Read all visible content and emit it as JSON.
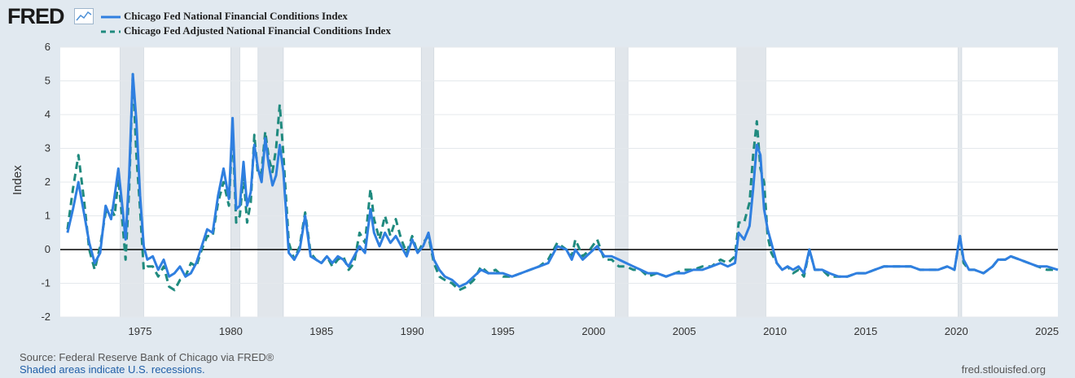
{
  "header": {
    "logo_text": "FRED",
    "logo_icon": "line-chart-icon"
  },
  "footer": {
    "source": "Source: Federal Reserve Bank of Chicago via FRED®",
    "recession_note": "Shaded areas indicate U.S. recessions.",
    "site": "fred.stlouisfed.org"
  },
  "colors": {
    "background": "#e1e9f0",
    "plot_background": "#ffffff",
    "recession_shade": "#e1e6eb",
    "nfci": "#2f7fe0",
    "anfci": "#1f8a7e",
    "zero_line": "#000000",
    "grid": "#e4e8ec"
  },
  "chart_data": {
    "type": "line",
    "title": "",
    "xlabel": "",
    "ylabel": "Index",
    "xlim": [
      1970.6,
      2025.6
    ],
    "ylim": [
      -2,
      6
    ],
    "yticks": [
      6,
      5,
      4,
      3,
      2,
      1,
      0,
      -1,
      -2
    ],
    "xticks": [
      1975,
      1980,
      1985,
      1990,
      1995,
      2000,
      2005,
      2010,
      2015,
      2020,
      2025
    ],
    "zero_line": 0,
    "legend": "top-left",
    "recessions": [
      [
        1973.9,
        1975.2
      ],
      [
        1980.0,
        1980.5
      ],
      [
        1981.5,
        1982.9
      ],
      [
        1990.5,
        1991.2
      ],
      [
        2001.2,
        2001.9
      ],
      [
        2007.9,
        2009.5
      ],
      [
        2020.1,
        2020.3
      ]
    ],
    "series": [
      {
        "name": "Chicago Fed National Financial Conditions Index",
        "style": "solid",
        "x": [
          1971.0,
          1971.3,
          1971.6,
          1971.9,
          1972.2,
          1972.5,
          1972.8,
          1973.1,
          1973.4,
          1973.6,
          1973.8,
          1974.0,
          1974.2,
          1974.4,
          1974.6,
          1974.8,
          1975.0,
          1975.2,
          1975.4,
          1975.7,
          1976.0,
          1976.3,
          1976.6,
          1976.9,
          1977.2,
          1977.5,
          1977.8,
          1978.1,
          1978.4,
          1978.7,
          1979.0,
          1979.3,
          1979.6,
          1979.9,
          1980.1,
          1980.3,
          1980.5,
          1980.7,
          1980.9,
          1981.1,
          1981.3,
          1981.5,
          1981.7,
          1981.9,
          1982.1,
          1982.3,
          1982.5,
          1982.7,
          1982.9,
          1983.2,
          1983.5,
          1983.8,
          1984.1,
          1984.4,
          1984.7,
          1985.0,
          1985.3,
          1985.6,
          1985.9,
          1986.2,
          1986.5,
          1986.8,
          1987.1,
          1987.4,
          1987.7,
          1987.9,
          1988.2,
          1988.5,
          1988.8,
          1989.1,
          1989.4,
          1989.7,
          1990.0,
          1990.3,
          1990.6,
          1990.9,
          1991.2,
          1991.5,
          1991.8,
          1992.2,
          1992.6,
          1993.0,
          1993.4,
          1993.8,
          1994.2,
          1994.6,
          1995.0,
          1995.5,
          1996.0,
          1996.5,
          1997.0,
          1997.5,
          1998.0,
          1998.5,
          1998.8,
          1999.0,
          1999.4,
          1999.8,
          2000.2,
          2000.6,
          2001.0,
          2001.4,
          2001.8,
          2002.2,
          2002.6,
          2003.0,
          2003.5,
          2004.0,
          2004.5,
          2005.0,
          2005.5,
          2006.0,
          2006.5,
          2007.0,
          2007.4,
          2007.8,
          2008.0,
          2008.3,
          2008.6,
          2008.8,
          2009.0,
          2009.2,
          2009.4,
          2009.6,
          2009.8,
          2010.1,
          2010.4,
          2010.7,
          2011.0,
          2011.3,
          2011.6,
          2011.9,
          2012.2,
          2012.6,
          2013.0,
          2013.5,
          2014.0,
          2014.5,
          2015.0,
          2015.5,
          2016.0,
          2016.5,
          2017.0,
          2017.5,
          2018.0,
          2018.5,
          2019.0,
          2019.5,
          2019.9,
          2020.2,
          2020.4,
          2020.7,
          2021.0,
          2021.5,
          2022.0,
          2022.3,
          2022.7,
          2023.0,
          2023.5,
          2024.0,
          2024.5,
          2025.0,
          2025.6
        ],
        "values": [
          0.5,
          1.2,
          2.0,
          1.1,
          0.2,
          -0.4,
          -0.1,
          1.3,
          0.9,
          1.6,
          2.4,
          1.4,
          0.3,
          2.2,
          5.2,
          3.8,
          1.6,
          0.1,
          -0.3,
          -0.2,
          -0.6,
          -0.3,
          -0.8,
          -0.7,
          -0.5,
          -0.8,
          -0.7,
          -0.4,
          0.1,
          0.6,
          0.5,
          1.6,
          2.4,
          1.5,
          3.9,
          1.2,
          1.3,
          2.6,
          1.3,
          1.7,
          3.1,
          2.4,
          2.0,
          3.3,
          2.5,
          1.9,
          2.2,
          3.1,
          2.3,
          -0.1,
          -0.3,
          0.0,
          1.0,
          -0.2,
          -0.3,
          -0.4,
          -0.2,
          -0.4,
          -0.2,
          -0.3,
          -0.5,
          -0.2,
          0.1,
          -0.1,
          1.2,
          0.5,
          0.1,
          0.5,
          0.2,
          0.4,
          0.1,
          -0.2,
          0.3,
          -0.1,
          0.1,
          0.5,
          -0.3,
          -0.6,
          -0.8,
          -0.9,
          -1.1,
          -1.0,
          -0.8,
          -0.6,
          -0.7,
          -0.7,
          -0.7,
          -0.8,
          -0.7,
          -0.6,
          -0.5,
          -0.4,
          0.1,
          0.0,
          -0.3,
          0.0,
          -0.3,
          -0.1,
          0.1,
          -0.2,
          -0.2,
          -0.3,
          -0.4,
          -0.5,
          -0.6,
          -0.7,
          -0.7,
          -0.8,
          -0.7,
          -0.7,
          -0.6,
          -0.6,
          -0.5,
          -0.4,
          -0.5,
          -0.4,
          0.5,
          0.3,
          0.7,
          1.8,
          3.1,
          2.8,
          1.2,
          0.6,
          0.2,
          -0.4,
          -0.6,
          -0.5,
          -0.6,
          -0.5,
          -0.7,
          0.0,
          -0.6,
          -0.6,
          -0.7,
          -0.8,
          -0.8,
          -0.7,
          -0.7,
          -0.6,
          -0.5,
          -0.5,
          -0.5,
          -0.5,
          -0.6,
          -0.6,
          -0.6,
          -0.5,
          -0.6,
          0.4,
          -0.3,
          -0.6,
          -0.6,
          -0.7,
          -0.5,
          -0.3,
          -0.3,
          -0.2,
          -0.3,
          -0.4,
          -0.5,
          -0.5,
          -0.6
        ]
      },
      {
        "name": "Chicago Fed Adjusted National Financial Conditions Index",
        "style": "dashed",
        "x": [
          1971.0,
          1971.3,
          1971.6,
          1971.9,
          1972.2,
          1972.5,
          1972.8,
          1973.1,
          1973.4,
          1973.6,
          1973.8,
          1974.0,
          1974.2,
          1974.4,
          1974.6,
          1974.8,
          1975.0,
          1975.2,
          1975.4,
          1975.7,
          1976.0,
          1976.3,
          1976.6,
          1976.9,
          1977.2,
          1977.5,
          1977.8,
          1978.1,
          1978.4,
          1978.7,
          1979.0,
          1979.3,
          1979.6,
          1979.9,
          1980.1,
          1980.3,
          1980.5,
          1980.7,
          1980.9,
          1981.1,
          1981.3,
          1981.5,
          1981.7,
          1981.9,
          1982.1,
          1982.3,
          1982.5,
          1982.7,
          1982.9,
          1983.2,
          1983.5,
          1983.8,
          1984.1,
          1984.4,
          1984.7,
          1985.0,
          1985.3,
          1985.6,
          1985.9,
          1986.2,
          1986.5,
          1986.8,
          1987.1,
          1987.4,
          1987.7,
          1987.9,
          1988.2,
          1988.5,
          1988.8,
          1989.1,
          1989.4,
          1989.7,
          1990.0,
          1990.3,
          1990.6,
          1990.9,
          1991.2,
          1991.5,
          1991.8,
          1992.2,
          1992.6,
          1993.0,
          1993.4,
          1993.8,
          1994.2,
          1994.6,
          1995.0,
          1995.5,
          1996.0,
          1996.5,
          1997.0,
          1997.5,
          1998.0,
          1998.5,
          1998.8,
          1999.0,
          1999.4,
          1999.8,
          2000.2,
          2000.6,
          2001.0,
          2001.4,
          2001.8,
          2002.2,
          2002.6,
          2003.0,
          2003.5,
          2004.0,
          2004.5,
          2005.0,
          2005.5,
          2006.0,
          2006.5,
          2007.0,
          2007.4,
          2007.8,
          2008.0,
          2008.3,
          2008.6,
          2008.8,
          2009.0,
          2009.2,
          2009.4,
          2009.6,
          2009.8,
          2010.1,
          2010.4,
          2010.7,
          2011.0,
          2011.3,
          2011.6,
          2011.9,
          2012.2,
          2012.6,
          2013.0,
          2013.5,
          2014.0,
          2014.5,
          2015.0,
          2015.5,
          2016.0,
          2016.5,
          2017.0,
          2017.5,
          2018.0,
          2018.5,
          2019.0,
          2019.5,
          2019.9,
          2020.2,
          2020.4,
          2020.7,
          2021.0,
          2021.5,
          2022.0,
          2022.3,
          2022.7,
          2023.0,
          2023.5,
          2024.0,
          2024.5,
          2025.0,
          2025.6
        ],
        "values": [
          0.6,
          1.8,
          2.8,
          1.5,
          0.0,
          -0.6,
          0.1,
          1.1,
          1.2,
          1.0,
          2.1,
          1.0,
          -0.3,
          1.8,
          5.2,
          2.8,
          1.2,
          -0.6,
          -0.5,
          -0.5,
          -0.8,
          -0.5,
          -1.1,
          -1.2,
          -0.9,
          -0.8,
          -0.4,
          -0.5,
          0.0,
          0.4,
          0.4,
          1.4,
          2.0,
          1.3,
          3.6,
          0.8,
          1.0,
          2.2,
          0.8,
          1.4,
          3.4,
          2.2,
          2.3,
          3.5,
          2.7,
          2.3,
          3.0,
          4.3,
          2.8,
          0.2,
          -0.3,
          0.1,
          1.1,
          -0.1,
          -0.3,
          -0.4,
          -0.2,
          -0.5,
          -0.3,
          -0.2,
          -0.6,
          -0.4,
          0.5,
          0.2,
          1.8,
          0.9,
          0.3,
          1.0,
          0.4,
          0.9,
          0.3,
          -0.1,
          0.4,
          -0.1,
          0.2,
          0.4,
          -0.4,
          -0.8,
          -0.9,
          -1.0,
          -1.2,
          -1.1,
          -0.9,
          -0.5,
          -0.7,
          -0.6,
          -0.8,
          -0.8,
          -0.7,
          -0.6,
          -0.5,
          -0.3,
          0.2,
          0.0,
          -0.2,
          0.3,
          -0.2,
          0.0,
          0.3,
          -0.3,
          -0.3,
          -0.5,
          -0.5,
          -0.6,
          -0.6,
          -0.8,
          -0.7,
          -0.8,
          -0.7,
          -0.6,
          -0.6,
          -0.5,
          -0.5,
          -0.3,
          -0.4,
          -0.2,
          0.8,
          0.8,
          1.4,
          2.8,
          3.8,
          2.4,
          2.0,
          0.4,
          -0.1,
          -0.4,
          -0.6,
          -0.5,
          -0.7,
          -0.6,
          -0.8,
          0.0,
          -0.6,
          -0.6,
          -0.8,
          -0.8,
          -0.8,
          -0.7,
          -0.7,
          -0.6,
          -0.5,
          -0.5,
          -0.5,
          -0.5,
          -0.6,
          -0.6,
          -0.6,
          -0.5,
          -0.6,
          0.4,
          -0.4,
          -0.6,
          -0.6,
          -0.7,
          -0.5,
          -0.3,
          -0.3,
          -0.2,
          -0.3,
          -0.4,
          -0.5,
          -0.6,
          -0.6
        ]
      }
    ]
  }
}
